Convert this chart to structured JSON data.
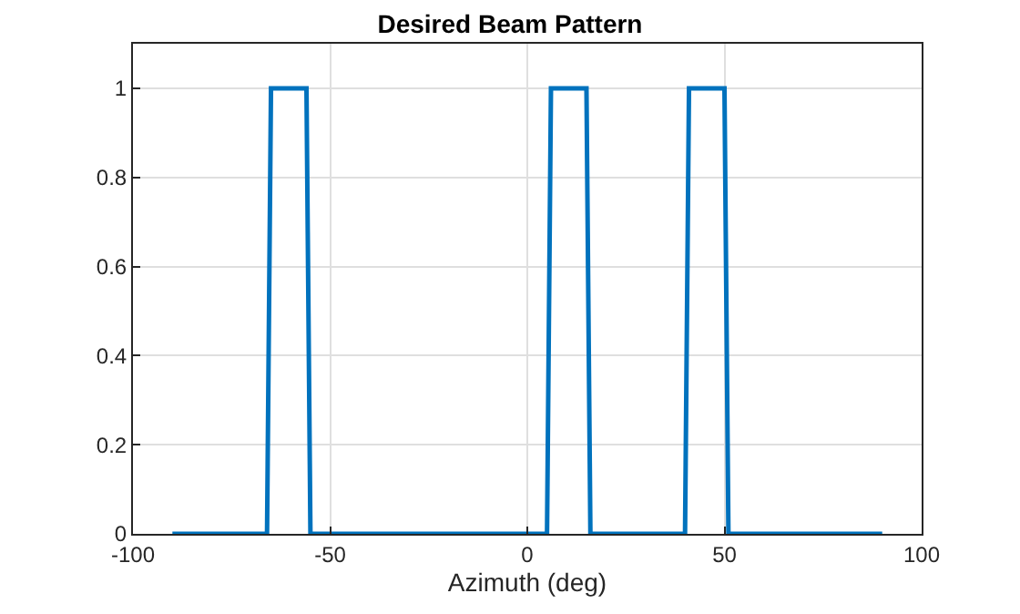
{
  "chart_data": {
    "type": "line",
    "title": "Desired Beam Pattern",
    "xlabel": "Azimuth (deg)",
    "x": [
      -90,
      -66,
      -65,
      -56,
      -55,
      5,
      6,
      15,
      16,
      40,
      41,
      50,
      51,
      90
    ],
    "series": [
      {
        "color": "#0072bd",
        "values": [
          0,
          0,
          1,
          1,
          0,
          0,
          1,
          1,
          0,
          0,
          1,
          1,
          0,
          0
        ]
      }
    ],
    "xlim": [
      -100,
      100
    ],
    "xticks": [
      -100,
      -50,
      0,
      50,
      100
    ],
    "ylim": [
      0,
      1.1
    ],
    "yticks": [
      0,
      0.2,
      0.4,
      0.6,
      0.8,
      1
    ],
    "grid": true,
    "marker": "none",
    "line_style": "solid"
  }
}
